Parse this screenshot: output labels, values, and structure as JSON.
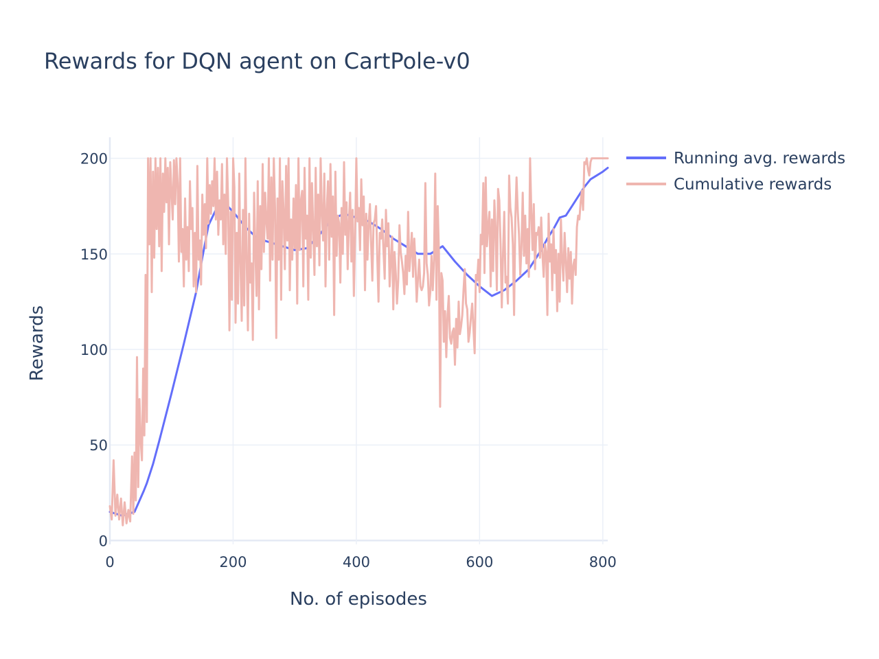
{
  "chart_data": {
    "type": "line",
    "title": "Rewards for DQN agent on CartPole-v0",
    "xlabel": "No. of episodes",
    "ylabel": "Rewards",
    "xlim": [
      0,
      808
    ],
    "ylim": [
      -2,
      211
    ],
    "xticks": [
      0,
      200,
      400,
      600,
      800
    ],
    "yticks": [
      0,
      50,
      100,
      150,
      200
    ],
    "grid": true,
    "legend": "top-right, outside plot",
    "series": [
      {
        "name": "Running avg. rewards",
        "color": "#636efa",
        "x": [
          0,
          20,
          40,
          55,
          60,
          70,
          80,
          100,
          120,
          140,
          150,
          160,
          175,
          185,
          200,
          220,
          240,
          260,
          280,
          300,
          320,
          340,
          360,
          380,
          400,
          420,
          440,
          460,
          480,
          500,
          520,
          540,
          560,
          580,
          600,
          620,
          640,
          660,
          680,
          700,
          710,
          720,
          730,
          740,
          750,
          760,
          770,
          780,
          790,
          800,
          808
        ],
        "y": [
          15,
          13,
          15,
          26,
          30,
          40,
          52,
          77,
          103,
          130,
          148,
          165,
          175,
          177,
          172,
          164,
          158,
          156,
          154,
          152,
          153,
          160,
          168,
          171,
          169,
          167,
          163,
          158,
          154,
          150,
          150,
          154,
          146,
          139,
          133,
          128,
          131,
          136,
          142,
          152,
          158,
          163,
          169,
          170,
          175,
          180,
          185,
          189,
          191,
          193,
          195
        ]
      },
      {
        "name": "Cumulative rewards",
        "color": "#efb6b0",
        "x": [
          0,
          3,
          6,
          9,
          12,
          15,
          18,
          21,
          24,
          27,
          30,
          33,
          36,
          38,
          40,
          42,
          44,
          46,
          48,
          50,
          52,
          54,
          56,
          58,
          60,
          62,
          64,
          66,
          68,
          70,
          72,
          74,
          76,
          78,
          80,
          82,
          84,
          86,
          88,
          90,
          92,
          94,
          96,
          98,
          100,
          102,
          104,
          106,
          108,
          110,
          112,
          114,
          116,
          118,
          120,
          122,
          124,
          126,
          128,
          130,
          132,
          134,
          136,
          138,
          140,
          142,
          144,
          146,
          148,
          150,
          152,
          154,
          156,
          158,
          160,
          162,
          164,
          166,
          168,
          170,
          172,
          174,
          176,
          178,
          180,
          182,
          184,
          186,
          188,
          190,
          192,
          194,
          196,
          198,
          200,
          202,
          204,
          206,
          208,
          210,
          212,
          214,
          216,
          218,
          220,
          222,
          224,
          226,
          228,
          230,
          232,
          234,
          236,
          238,
          240,
          242,
          244,
          246,
          248,
          250,
          252,
          254,
          256,
          258,
          260,
          262,
          264,
          266,
          268,
          270,
          272,
          274,
          276,
          278,
          280,
          282,
          284,
          286,
          288,
          290,
          292,
          294,
          296,
          298,
          300,
          302,
          304,
          306,
          308,
          310,
          312,
          314,
          316,
          318,
          320,
          322,
          324,
          326,
          328,
          330,
          332,
          334,
          336,
          338,
          340,
          342,
          344,
          346,
          348,
          350,
          352,
          354,
          356,
          358,
          360,
          362,
          364,
          366,
          368,
          370,
          372,
          374,
          376,
          378,
          380,
          382,
          384,
          386,
          388,
          390,
          392,
          394,
          396,
          398,
          400,
          402,
          404,
          406,
          408,
          410,
          412,
          414,
          416,
          418,
          420,
          422,
          424,
          426,
          428,
          430,
          432,
          434,
          436,
          438,
          440,
          442,
          444,
          446,
          448,
          450,
          452,
          454,
          456,
          458,
          460,
          462,
          464,
          466,
          468,
          470,
          472,
          474,
          476,
          478,
          480,
          482,
          484,
          486,
          488,
          490,
          492,
          494,
          496,
          498,
          500,
          502,
          504,
          506,
          508,
          510,
          512,
          514,
          516,
          518,
          520,
          522,
          524,
          526,
          528,
          530,
          532,
          534,
          536,
          538,
          540,
          542,
          544,
          546,
          548,
          550,
          552,
          554,
          556,
          558,
          560,
          562,
          564,
          566,
          568,
          570,
          572,
          574,
          576,
          578,
          580,
          582,
          584,
          586,
          588,
          590,
          592,
          594,
          596,
          598,
          600,
          602,
          604,
          606,
          608,
          610,
          612,
          614,
          616,
          618,
          620,
          622,
          624,
          626,
          628,
          630,
          632,
          634,
          636,
          638,
          640,
          642,
          644,
          646,
          648,
          650,
          652,
          654,
          656,
          658,
          660,
          662,
          664,
          666,
          668,
          670,
          672,
          674,
          676,
          678,
          680,
          682,
          684,
          686,
          688,
          690,
          692,
          694,
          696,
          698,
          700,
          702,
          704,
          706,
          708,
          710,
          712,
          714,
          716,
          718,
          720,
          722,
          724,
          726,
          728,
          730,
          732,
          734,
          736,
          738,
          740,
          742,
          744,
          746,
          748,
          750,
          752,
          754,
          756,
          758,
          760,
          762,
          764,
          766,
          768,
          770,
          772,
          774,
          776,
          778,
          780,
          782,
          784,
          786,
          788,
          790,
          792,
          794,
          796,
          798,
          800,
          802,
          804,
          806,
          808
        ],
        "y": [
          18,
          11,
          42,
          13,
          24,
          11,
          22,
          8,
          20,
          9,
          16,
          10,
          44,
          14,
          46,
          21,
          96,
          28,
          74,
          52,
          42,
          90,
          55,
          139,
          62,
          200,
          155,
          200,
          130,
          193,
          148,
          200,
          163,
          195,
          154,
          200,
          141,
          192,
          172,
          200,
          177,
          195,
          155,
          198,
          183,
          168,
          199,
          176,
          200,
          187,
          146,
          200,
          151,
          163,
          133,
          179,
          147,
          164,
          141,
          188,
          163,
          174,
          133,
          161,
          130,
          196,
          147,
          157,
          134,
          181,
          160,
          176,
          153,
          200,
          166,
          186,
          171,
          188,
          175,
          200,
          168,
          193,
          160,
          178,
          168,
          197,
          155,
          181,
          150,
          200,
          176,
          110,
          172,
          126,
          200,
          185,
          114,
          161,
          124,
          192,
          145,
          115,
          173,
          123,
          200,
          147,
          110,
          171,
          135,
          145,
          105,
          182,
          153,
          128,
          188,
          121,
          175,
          142,
          197,
          151,
          182,
          167,
          158,
          200,
          136,
          190,
          147,
          200,
          174,
          106,
          179,
          147,
          200,
          126,
          188,
          172,
          142,
          196,
          157,
          200,
          131,
          168,
          147,
          179,
          153,
          186,
          124,
          200,
          152,
          178,
          183,
          133,
          195,
          158,
          170,
          126,
          200,
          148,
          187,
          163,
          139,
          195,
          154,
          181,
          144,
          200,
          172,
          157,
          192,
          133,
          173,
          188,
          147,
          197,
          159,
          180,
          118,
          193,
          149,
          170,
          166,
          135,
          174,
          150,
          198,
          160,
          177,
          142,
          167,
          182,
          146,
          173,
          128,
          159,
          200,
          167,
          174,
          152,
          189,
          165,
          180,
          131,
          171,
          147,
          166,
          176,
          156,
          136,
          166,
          168,
          175,
          148,
          125,
          161,
          158,
          168,
          152,
          137,
          173,
          154,
          166,
          133,
          147,
          159,
          121,
          151,
          140,
          124,
          136,
          165,
          151,
          146,
          140,
          129,
          149,
          134,
          172,
          141,
          150,
          161,
          138,
          158,
          145,
          125,
          137,
          147,
          133,
          131,
          133,
          140,
          187,
          145,
          139,
          123,
          130,
          149,
          131,
          147,
          192,
          126,
          175,
          152,
          70,
          140,
          136,
          104,
          120,
          96,
          118,
          128,
          106,
          103,
          109,
          111,
          92,
          116,
          101,
          125,
          108,
          112,
          118,
          131,
          142,
          124,
          121,
          104,
          109,
          117,
          124,
          111,
          98,
          139,
          136,
          147,
          130,
          160,
          155,
          187,
          140,
          190,
          154,
          165,
          172,
          133,
          168,
          141,
          178,
          163,
          131,
          184,
          178,
          155,
          122,
          150,
          172,
          135,
          138,
          124,
          191,
          174,
          169,
          155,
          118,
          168,
          190,
          172,
          160,
          139,
          154,
          182,
          149,
          170,
          145,
          163,
          138,
          200,
          172,
          152,
          176,
          142,
          161,
          160,
          164,
          148,
          169,
          150,
          138,
          155,
          151,
          118,
          171,
          146,
          155,
          131,
          163,
          140,
          152,
          120,
          150,
          125,
          168,
          147,
          136,
          161,
          146,
          130,
          153,
          137,
          151,
          124,
          144,
          147,
          139,
          164,
          170,
          168,
          177,
          183,
          173,
          198,
          197,
          200,
          194,
          191,
          198,
          200,
          200,
          200,
          200,
          200,
          200,
          200,
          200,
          200,
          200,
          200,
          200,
          200,
          200
        ]
      }
    ]
  }
}
